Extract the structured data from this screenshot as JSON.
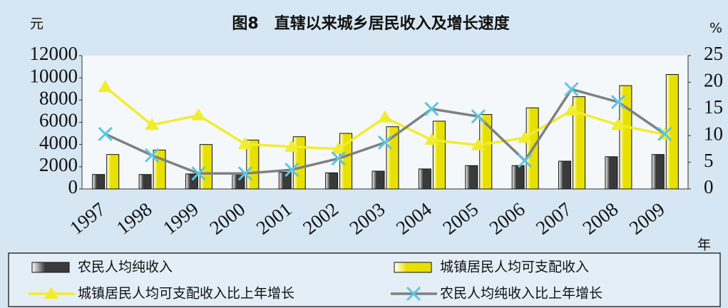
{
  "chart_data": {
    "type": "bar_line",
    "title": "图8　直辖以来城乡居民收入及增长速度",
    "y_axis_label": "元",
    "y2_axis_label": "%",
    "x_axis_label": "年",
    "categories": [
      "1997",
      "1998",
      "1999",
      "2000",
      "2001",
      "2002",
      "2003",
      "2004",
      "2005",
      "2006",
      "2007",
      "2008",
      "2009"
    ],
    "series": [
      {
        "name": "农民人均纯收入",
        "type": "bar",
        "color": "#3a3a3a",
        "values": [
          1300,
          1300,
          1350,
          1400,
          1500,
          1450,
          1600,
          1800,
          2100,
          2100,
          2500,
          2900,
          3100
        ]
      },
      {
        "name": "城镇居民人均可支配收入",
        "type": "bar",
        "color": "#e8e000",
        "values": [
          3100,
          3500,
          4000,
          4400,
          4700,
          5000,
          5600,
          6100,
          6700,
          7300,
          8300,
          9300,
          10300
        ]
      },
      {
        "name": "城镇居民人均可支配收入比上年增长",
        "type": "line",
        "axis": "y2",
        "color": "#f2ec2e",
        "marker": "triangle",
        "marker_color": "#f2ec2e",
        "values": [
          19.1,
          12,
          13.8,
          8.4,
          7.9,
          7.5,
          13.4,
          9.2,
          8.2,
          9.6,
          14.7,
          12,
          10.2
        ]
      },
      {
        "name": "农民人均纯收入比上年增长",
        "type": "line",
        "axis": "y2",
        "color": "#808080",
        "marker": "x",
        "marker_color": "#5cc6e0",
        "values": [
          10.3,
          6.3,
          2.9,
          2.9,
          3.6,
          5.7,
          8.7,
          15,
          13.6,
          5.3,
          18.7,
          16.3,
          10.3
        ]
      }
    ],
    "ylim": [
      0,
      12000
    ],
    "yticks": [
      0,
      2000,
      4000,
      6000,
      8000,
      10000,
      12000
    ],
    "y2lim": [
      0,
      25
    ],
    "y2ticks": [
      0,
      5,
      10,
      15,
      20,
      25
    ],
    "grid": false
  }
}
